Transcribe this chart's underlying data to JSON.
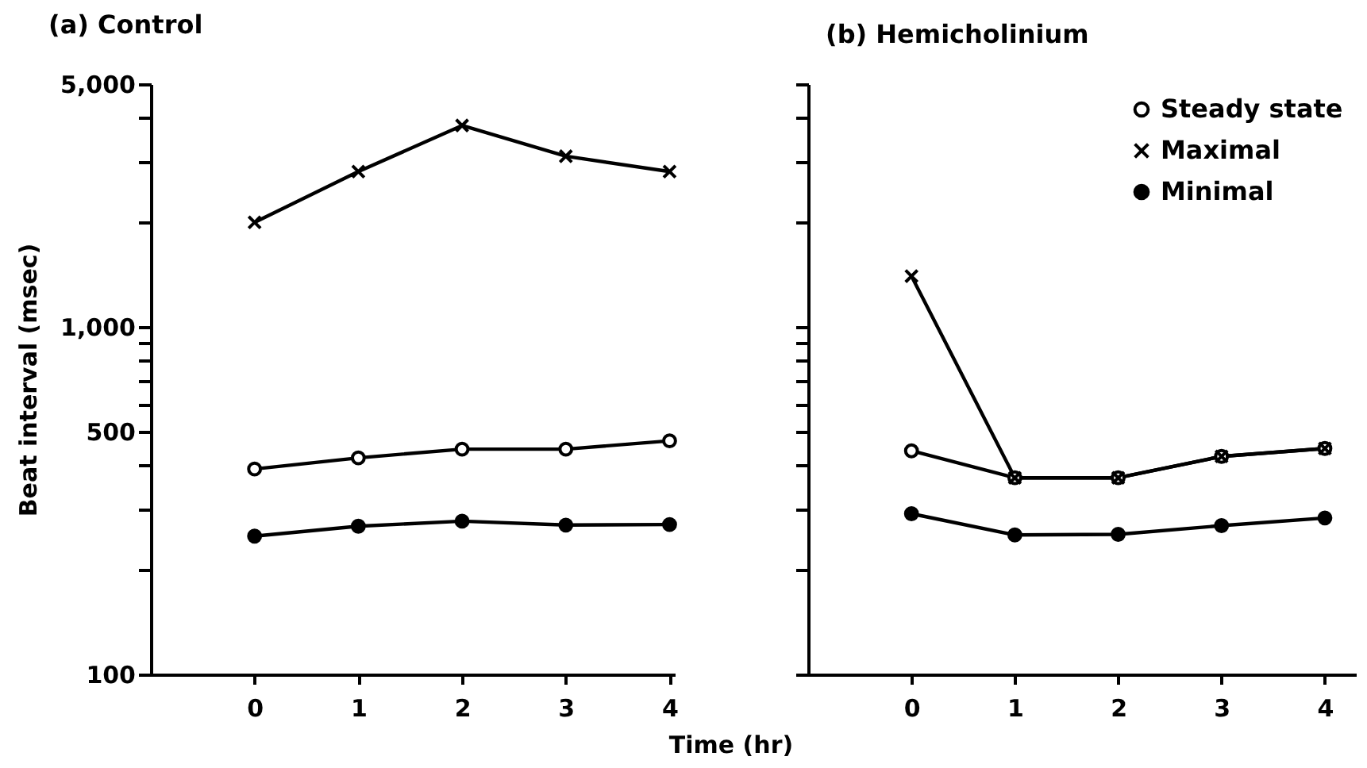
{
  "chart_data": [
    {
      "type": "line",
      "title": "(a) Control",
      "xlabel": "Time (hr)",
      "ylabel": "Beat interval (msec)",
      "x": [
        0,
        1,
        2,
        3,
        4
      ],
      "xlim": [
        -1,
        4.05
      ],
      "xticks": [
        0,
        1,
        2,
        3,
        4
      ],
      "log": true,
      "ylim": [
        100,
        5000
      ],
      "yticks": [
        100,
        {
          "value": 200,
          "label": null
        },
        {
          "value": 300,
          "label": null
        },
        {
          "value": 400,
          "label": null
        },
        {
          "value": 500,
          "label": "500"
        },
        {
          "value": 600,
          "label": null
        },
        {
          "value": 700,
          "label": null
        },
        {
          "value": 800,
          "label": null
        },
        {
          "value": 900,
          "label": null
        },
        {
          "value": 1000,
          "label": "1,000"
        },
        {
          "value": 2000,
          "label": null
        },
        {
          "value": 3000,
          "label": null
        },
        {
          "value": 4000,
          "label": null
        },
        {
          "value": 5000,
          "label": "5,000"
        }
      ],
      "grid": false,
      "legend": false,
      "series": [
        {
          "color": "#000000",
          "marker": "circle",
          "values": [
            390,
            420,
            445,
            445,
            470
          ]
        },
        {
          "color": "#000000",
          "marker": "cross",
          "values": [
            2000,
            2800,
            3800,
            3100,
            2800
          ]
        },
        {
          "color": "#000000",
          "marker": "circle",
          "values": [
            250,
            267,
            276,
            269,
            270
          ]
        }
      ]
    },
    {
      "type": "line",
      "title": "(b) Hemicholinium",
      "x": [
        0,
        1,
        2,
        3,
        4
      ],
      "xlim": [
        -1,
        4.3
      ],
      "xticks": [
        0,
        1,
        2,
        3,
        4
      ],
      "log": true,
      "ylim": [
        100,
        5000
      ],
      "yticks": [
        {
          "value": 100,
          "label": null
        },
        {
          "value": 200,
          "label": null
        },
        {
          "value": 300,
          "label": null
        },
        {
          "value": 400,
          "label": null
        },
        {
          "value": 500,
          "label": null
        },
        {
          "value": 600,
          "label": null
        },
        {
          "value": 700,
          "label": null
        },
        {
          "value": 800,
          "label": null
        },
        {
          "value": 900,
          "label": null
        },
        {
          "value": 1000,
          "label": null
        },
        {
          "value": 2000,
          "label": null
        },
        {
          "value": 3000,
          "label": null
        },
        {
          "value": 4000,
          "label": null
        },
        {
          "value": 5000,
          "label": null
        }
      ],
      "tick_labels": "x",
      "grid": false,
      "legend": "top right",
      "series": [
        {
          "name": "Steady state",
          "color": "#000000",
          "marker": "circle",
          "values": [
            440,
            368,
            368,
            424,
            447
          ]
        },
        {
          "name": "Maximal",
          "color": "#000000",
          "marker": "cross",
          "values": [
            1400,
            368,
            368,
            424,
            447
          ]
        },
        {
          "name": "Minimal",
          "color": "#000000",
          "marker": "circle",
          "values": [
            290,
            252,
            253,
            268,
            282
          ]
        }
      ]
    }
  ]
}
